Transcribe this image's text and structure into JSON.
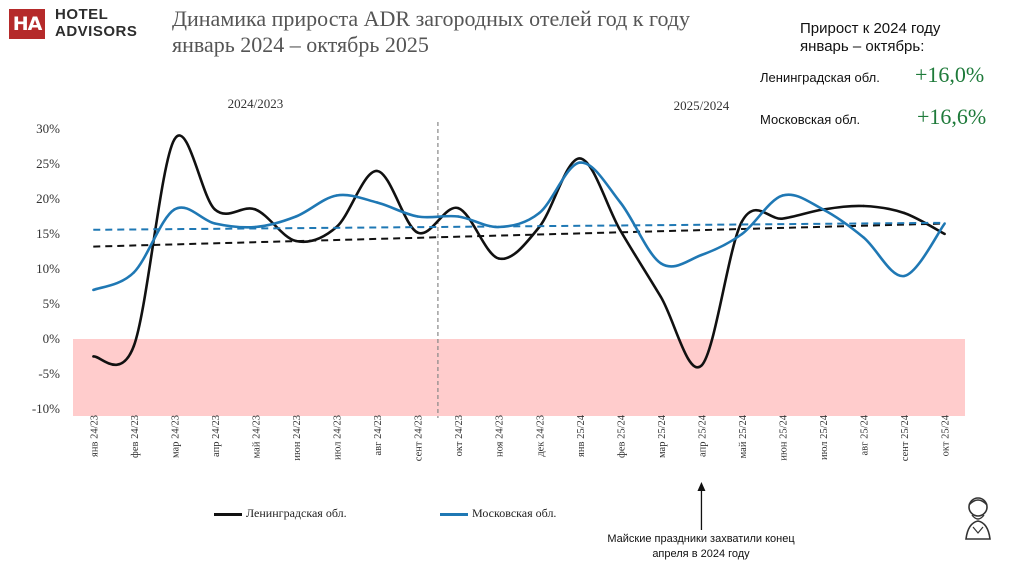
{
  "brand": {
    "logo_mark": "HA",
    "line1": "HOTEL",
    "line2": "ADVISORS"
  },
  "title": {
    "line1": "Динамика прироста ADR загородных отелей год к году",
    "line2": "январь 2024 – октябрь 2025"
  },
  "summary": {
    "heading_line1": "Прирост к 2024 году",
    "heading_line2": "январь – октябрь:",
    "rows": [
      {
        "label": "Ленинградская обл.",
        "value": "+16,0%"
      },
      {
        "label": "Московская обл.",
        "value": "+16,6%"
      }
    ]
  },
  "colors": {
    "leningrad": "#111111",
    "moscow": "#1f78b4",
    "negative_zone": "#ffcccc",
    "accent_green": "#1e7a3a",
    "logo_red": "#b52a2a"
  },
  "annotation": {
    "text_line1": "Майские праздники захватили конец",
    "text_line2": "апреля в 2024 году"
  },
  "chart_data": {
    "type": "line",
    "period_labels": [
      "2024/2023",
      "2025/2024"
    ],
    "categories": [
      "янв 24/23",
      "фев 24/23",
      "мар 24/23",
      "апр 24/23",
      "май 24/23",
      "июн 24/23",
      "июл 24/23",
      "авг 24/23",
      "сент 24/23",
      "окт 24/23",
      "ноя 24/23",
      "дек 24/23",
      "янв 25/24",
      "фев 25/24",
      "мар 25/24",
      "апр 25/24",
      "май 25/24",
      "июн 25/24",
      "июл 25/24",
      "авг 25/24",
      "сент 25/24",
      "окт 25/24"
    ],
    "series": [
      {
        "name": "Ленинградская обл.",
        "color": "#111111",
        "trend_from": 13.2,
        "trend_to": 16.5,
        "values": [
          -2.5,
          -1.0,
          28.5,
          18.5,
          18.5,
          14.0,
          16.0,
          24.0,
          15.2,
          18.7,
          11.5,
          16.0,
          25.8,
          15.5,
          6.0,
          -3.8,
          16.8,
          17.2,
          18.5,
          19.0,
          18.0,
          15.0
        ]
      },
      {
        "name": "Московская обл.",
        "color": "#1f78b4",
        "trend_from": 15.6,
        "trend_to": 16.6,
        "values": [
          7.0,
          9.5,
          18.5,
          16.5,
          16.0,
          17.5,
          20.5,
          19.5,
          17.5,
          17.5,
          16.0,
          18.0,
          25.2,
          19.5,
          10.8,
          12.0,
          15.0,
          20.5,
          18.5,
          14.5,
          9.0,
          16.5
        ]
      }
    ],
    "ylim": [
      -10,
      30
    ],
    "yticks": [
      30,
      25,
      20,
      15,
      10,
      5,
      0,
      -5,
      -10
    ],
    "ytick_labels": [
      "30%",
      "25%",
      "20%",
      "15%",
      "10%",
      "5%",
      "0%",
      "-5%",
      "-10%"
    ],
    "negative_zone": [
      -11,
      0
    ],
    "annotated_category": "апр 25/24",
    "legend_position": "bottom"
  }
}
